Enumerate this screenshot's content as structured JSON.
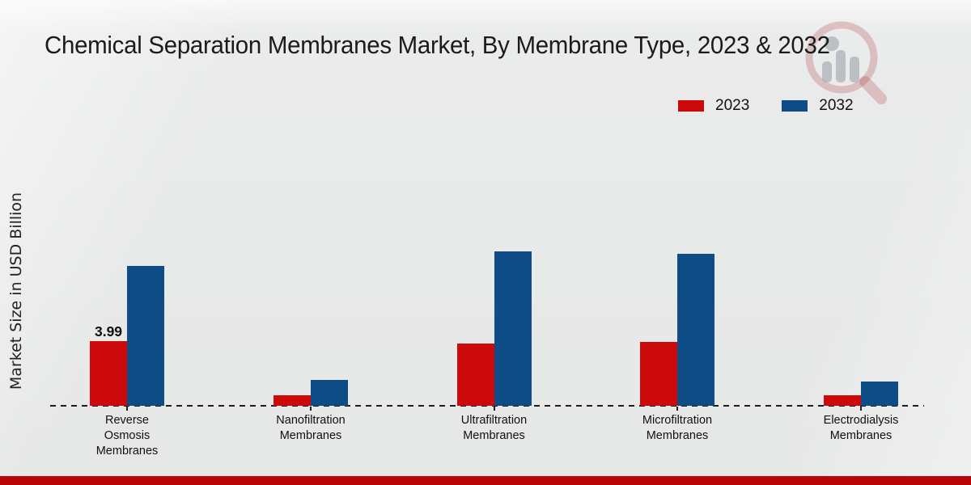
{
  "title": "Chemical Separation Membranes Market, By Membrane Type, 2023 & 2032",
  "y_axis_label": "Market Size in USD Billion",
  "legend": {
    "position": "top-right",
    "items": [
      {
        "label": "2023",
        "color": "#cc0a0b"
      },
      {
        "label": "2032",
        "color": "#0e4c85"
      }
    ]
  },
  "watermark": "magnifier-bar-chart-logo",
  "footer_strip_color": "#b90505",
  "chart_data": {
    "type": "bar",
    "title": "Chemical Separation Membranes Market, By Membrane Type, 2023 & 2032",
    "xlabel": "",
    "ylabel": "Market Size in USD Billion",
    "grid": false,
    "baseline_style": "dashed",
    "legend_position": "top-right",
    "ylim": [
      0,
      11
    ],
    "categories": [
      "Reverse Osmosis Membranes",
      "Nanofiltration Membranes",
      "Ultrafiltration Membranes",
      "Microfiltration Membranes",
      "Electrodialysis Membranes"
    ],
    "category_label_lines": [
      [
        "Reverse",
        "Osmosis",
        "Membranes"
      ],
      [
        "Nanofiltration",
        "Membranes"
      ],
      [
        "Ultrafiltration",
        "Membranes"
      ],
      [
        "Microfiltration",
        "Membranes"
      ],
      [
        "Electrodialysis",
        "Membranes"
      ]
    ],
    "series": [
      {
        "name": "2023",
        "color": "#cc0a0b",
        "values": [
          3.99,
          0.65,
          3.85,
          3.95,
          0.65
        ]
      },
      {
        "name": "2032",
        "color": "#0e4c85",
        "values": [
          8.65,
          1.6,
          9.55,
          9.4,
          1.5
        ]
      }
    ],
    "annotations": [
      {
        "series": "2023",
        "category_index": 0,
        "text": "3.99"
      }
    ]
  }
}
